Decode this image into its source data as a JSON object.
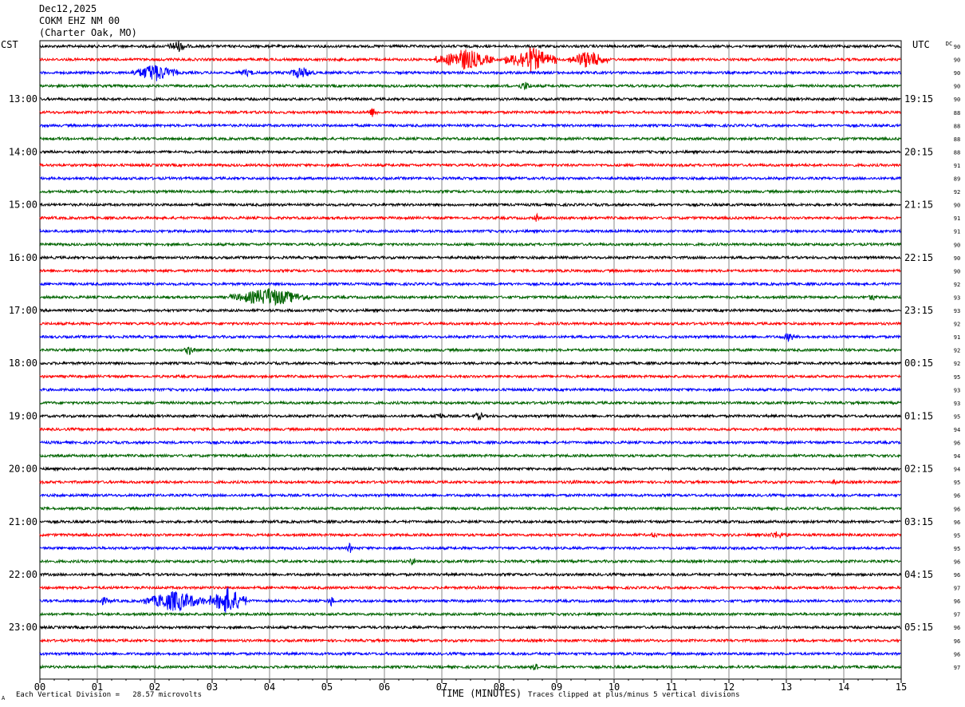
{
  "header": {
    "date": "Dec12,2025",
    "station": "COKM EHZ NM 00",
    "location": "(Charter Oak, MO)"
  },
  "left_tz": "CST",
  "right_tz": "UTC",
  "dc_label": "DC",
  "footer": {
    "mark": "A",
    "scale": "Each Vertical Division =   28.57 microvolts",
    "clip": "Traces clipped at plus/minus 5 vertical divisions"
  },
  "chart_data": {
    "type": "line",
    "title": "",
    "xlabel": "TIME (MINUTES)",
    "xlim": [
      0,
      15
    ],
    "x_ticks": [
      "00",
      "01",
      "02",
      "03",
      "04",
      "05",
      "06",
      "07",
      "08",
      "09",
      "10",
      "11",
      "12",
      "13",
      "14",
      "15"
    ],
    "trace_colors": [
      "#000000",
      "#ff0000",
      "#0000ff",
      "#006400"
    ],
    "left_hour_labels": [
      "13:00",
      "14:00",
      "15:00",
      "16:00",
      "17:00",
      "18:00",
      "19:00",
      "20:00",
      "21:00",
      "22:00",
      "23:00"
    ],
    "right_hour_labels": [
      "19:15",
      "20:15",
      "21:15",
      "22:15",
      "23:15",
      "00:15",
      "01:15",
      "02:15",
      "03:15",
      "04:15",
      "05:15"
    ],
    "dc_values": [
      "90",
      "90",
      "90",
      "90",
      "90",
      "88",
      "88",
      "88",
      "88",
      "91",
      "89",
      "92",
      "90",
      "91",
      "91",
      "90",
      "90",
      "90",
      "92",
      "93",
      "93",
      "92",
      "91",
      "92",
      "92",
      "95",
      "93",
      "93",
      "95",
      "94",
      "96",
      "94",
      "94",
      "95",
      "96",
      "96",
      "96",
      "95",
      "95",
      "96",
      "96",
      "97",
      "96",
      "97",
      "96",
      "96",
      "96",
      "97"
    ],
    "events": [
      {
        "trace": 0,
        "t_start": 2.2,
        "t_end": 2.6,
        "amp": 8
      },
      {
        "trace": 1,
        "t_start": 6.9,
        "t_end": 7.9,
        "amp": 14
      },
      {
        "trace": 1,
        "t_start": 8.1,
        "t_end": 9.0,
        "amp": 16
      },
      {
        "trace": 1,
        "t_start": 9.2,
        "t_end": 9.9,
        "amp": 12
      },
      {
        "trace": 2,
        "t_start": 1.6,
        "t_end": 2.4,
        "amp": 12
      },
      {
        "trace": 2,
        "t_start": 3.4,
        "t_end": 3.8,
        "amp": 5
      },
      {
        "trace": 2,
        "t_start": 4.3,
        "t_end": 4.8,
        "amp": 8
      },
      {
        "trace": 3,
        "t_start": 8.3,
        "t_end": 8.6,
        "amp": 6
      },
      {
        "trace": 5,
        "t_start": 5.7,
        "t_end": 5.9,
        "amp": 7
      },
      {
        "trace": 13,
        "t_start": 8.6,
        "t_end": 8.7,
        "amp": 6
      },
      {
        "trace": 19,
        "t_start": 3.3,
        "t_end": 4.7,
        "amp": 12
      },
      {
        "trace": 19,
        "t_start": 14.4,
        "t_end": 14.6,
        "amp": 5
      },
      {
        "trace": 22,
        "t_start": 12.9,
        "t_end": 13.2,
        "amp": 6
      },
      {
        "trace": 23,
        "t_start": 2.5,
        "t_end": 2.7,
        "amp": 7
      },
      {
        "trace": 28,
        "t_start": 6.8,
        "t_end": 7.1,
        "amp": 5
      },
      {
        "trace": 28,
        "t_start": 7.5,
        "t_end": 7.8,
        "amp": 5
      },
      {
        "trace": 33,
        "t_start": 9.2,
        "t_end": 9.4,
        "amp": 4
      },
      {
        "trace": 33,
        "t_start": 13.8,
        "t_end": 13.9,
        "amp": 5
      },
      {
        "trace": 37,
        "t_start": 10.6,
        "t_end": 10.8,
        "amp": 4
      },
      {
        "trace": 37,
        "t_start": 12.6,
        "t_end": 13.1,
        "amp": 5
      },
      {
        "trace": 38,
        "t_start": 5.35,
        "t_end": 5.45,
        "amp": 8
      },
      {
        "trace": 39,
        "t_start": 6.45,
        "t_end": 6.55,
        "amp": 9
      },
      {
        "trace": 41,
        "t_start": 7.6,
        "t_end": 7.7,
        "amp": 4
      },
      {
        "trace": 42,
        "t_start": 0.9,
        "t_end": 1.3,
        "amp": 5
      },
      {
        "trace": 42,
        "t_start": 1.8,
        "t_end": 2.9,
        "amp": 14
      },
      {
        "trace": 42,
        "t_start": 2.95,
        "t_end": 3.6,
        "amp": 18
      },
      {
        "trace": 42,
        "t_start": 5.0,
        "t_end": 5.15,
        "amp": 7
      },
      {
        "trace": 47,
        "t_start": 8.55,
        "t_end": 8.7,
        "amp": 9
      }
    ]
  }
}
